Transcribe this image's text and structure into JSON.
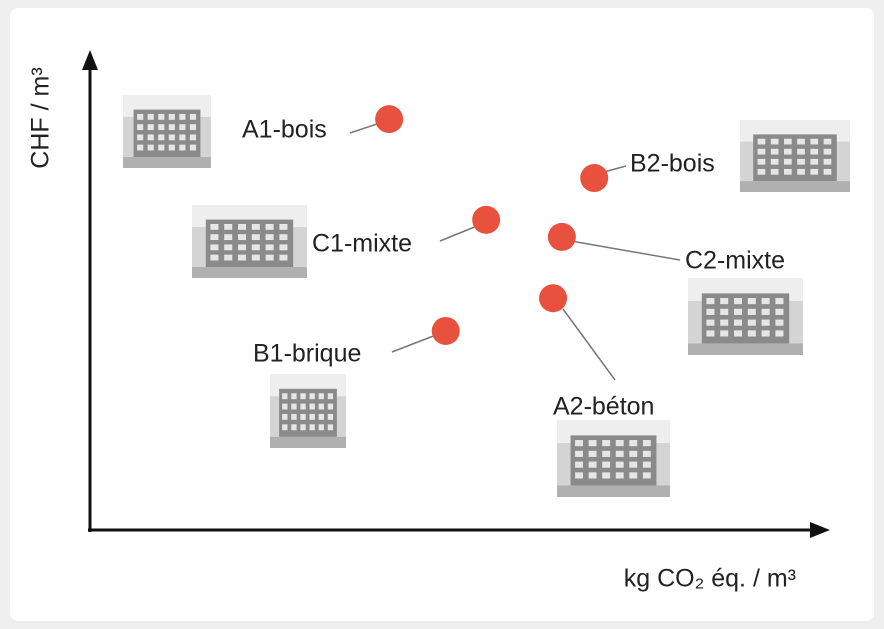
{
  "chart_data": {
    "type": "scatter",
    "xlabel": "kg CO₂ éq. / m³",
    "ylabel": "CHF / m³",
    "labels": [
      "A1-bois",
      "B2-bois",
      "C1-mixte",
      "C2-mixte",
      "A2-béton",
      "B1-brique"
    ],
    "x": [
      40.7,
      68.6,
      53.9,
      64.2,
      63.0,
      48.4
    ],
    "values": [
      86.5,
      74.1,
      65.3,
      61.7,
      48.8,
      41.9
    ],
    "color": "#e8513d",
    "xlim": [
      0,
      100
    ],
    "ylim": [
      0,
      100
    ]
  }
}
